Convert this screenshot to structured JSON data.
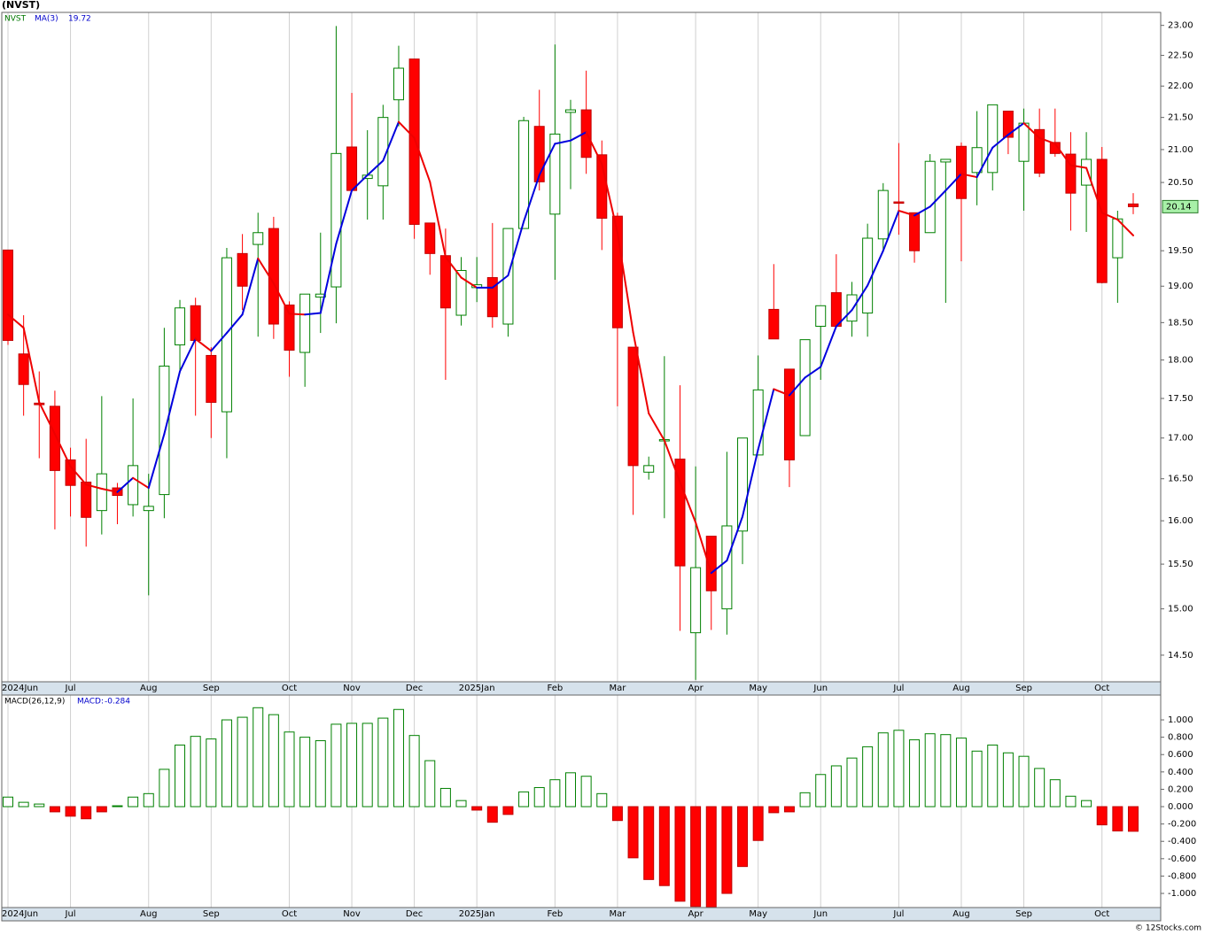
{
  "chart_data": [
    {
      "type": "candlestick",
      "title": "(NVST)",
      "symbol": "NVST",
      "categories": [
        "2024Jun",
        null,
        null,
        null,
        "Jul",
        null,
        null,
        null,
        null,
        "Aug",
        null,
        null,
        null,
        "Sep",
        null,
        null,
        null,
        null,
        "Oct",
        null,
        null,
        null,
        "Nov",
        null,
        null,
        null,
        "Dec",
        null,
        null,
        null,
        "2025Jan",
        null,
        null,
        null,
        null,
        "Feb",
        null,
        null,
        null,
        "Mar",
        null,
        null,
        null,
        null,
        "Apr",
        null,
        null,
        null,
        "May",
        null,
        null,
        null,
        "Jun",
        null,
        null,
        null,
        null,
        "Jul",
        null,
        null,
        null,
        "Aug",
        null,
        null,
        null,
        "Sep",
        null,
        null,
        null,
        null,
        "Oct",
        null,
        null
      ],
      "open": [
        19.51,
        18.08,
        17.44,
        17.4,
        16.73,
        16.46,
        16.12,
        16.39,
        16.19,
        16.12,
        16.31,
        18.2,
        18.73,
        18.06,
        17.33,
        19.46,
        19.59,
        19.82,
        18.74,
        18.1,
        18.85,
        18.99,
        21.04,
        20.56,
        20.45,
        21.78,
        22.44,
        19.9,
        19.43,
        18.6,
        18.98,
        19.12,
        18.48,
        19.82,
        21.36,
        20.03,
        21.58,
        21.62,
        20.92,
        20.0,
        18.17,
        16.58,
        16.97,
        16.74,
        14.74,
        15.82,
        15.0,
        15.88,
        16.79,
        18.68,
        17.88,
        17.03,
        18.45,
        18.91,
        18.52,
        18.63,
        19.67,
        20.21,
        20.05,
        19.76,
        20.81,
        21.05,
        20.65,
        20.65,
        21.6,
        20.82,
        21.31,
        21.11,
        20.93,
        20.46,
        20.85,
        19.4,
        20.18
      ],
      "high": [
        19.51,
        18.6,
        17.85,
        17.6,
        16.88,
        16.99,
        17.53,
        16.45,
        17.5,
        16.56,
        18.43,
        18.81,
        18.84,
        18.17,
        19.54,
        19.74,
        20.05,
        19.99,
        18.79,
        18.89,
        19.76,
        22.99,
        21.89,
        21.3,
        21.7,
        22.66,
        22.44,
        19.9,
        19.82,
        19.41,
        19.41,
        19.9,
        19.82,
        21.51,
        21.94,
        22.68,
        21.78,
        22.25,
        21.14,
        20.05,
        18.17,
        16.77,
        18.05,
        17.67,
        16.65,
        15.82,
        16.83,
        17.0,
        18.06,
        19.31,
        17.88,
        18.27,
        18.73,
        19.45,
        19.06,
        19.89,
        20.49,
        21.1,
        20.05,
        20.93,
        20.85,
        21.11,
        21.6,
        21.7,
        21.6,
        21.64,
        21.64,
        21.64,
        21.27,
        21.27,
        21.04,
        20.08,
        20.34
      ],
      "low": [
        18.2,
        17.28,
        16.75,
        15.9,
        16.05,
        15.7,
        15.84,
        15.96,
        16.05,
        15.15,
        16.03,
        17.85,
        17.28,
        17.0,
        16.75,
        18.67,
        18.31,
        18.28,
        17.78,
        17.65,
        18.36,
        18.49,
        20.36,
        19.95,
        19.95,
        21.36,
        19.67,
        19.16,
        17.74,
        18.46,
        18.78,
        18.43,
        18.31,
        19.82,
        20.38,
        19.09,
        20.4,
        20.63,
        19.51,
        17.4,
        16.07,
        16.49,
        16.03,
        14.76,
        14.24,
        14.77,
        14.72,
        15.5,
        16.79,
        18.28,
        16.4,
        17.03,
        17.74,
        18.43,
        18.31,
        18.31,
        19.51,
        19.73,
        19.33,
        19.76,
        18.77,
        19.35,
        20.16,
        20.38,
        20.93,
        20.08,
        20.58,
        20.89,
        19.79,
        19.77,
        19.04,
        18.77,
        20.03
      ],
      "close": [
        18.26,
        17.68,
        17.42,
        16.6,
        16.42,
        16.04,
        16.56,
        16.3,
        16.66,
        16.17,
        17.92,
        18.7,
        18.26,
        17.45,
        19.4,
        19.0,
        19.76,
        18.48,
        18.13,
        18.89,
        18.89,
        20.94,
        20.38,
        20.61,
        21.5,
        22.29,
        19.88,
        19.46,
        18.7,
        19.22,
        19.02,
        18.58,
        19.82,
        21.45,
        20.51,
        21.24,
        21.62,
        20.88,
        19.97,
        18.43,
        16.66,
        16.66,
        16.98,
        15.48,
        15.46,
        15.2,
        15.94,
        17.0,
        17.61,
        18.28,
        16.73,
        18.27,
        18.73,
        18.45,
        18.88,
        19.68,
        20.38,
        20.2,
        19.5,
        20.82,
        20.85,
        20.26,
        21.03,
        21.7,
        21.19,
        21.41,
        20.64,
        20.94,
        20.34,
        20.85,
        19.05,
        19.96,
        20.14
      ],
      "up_color": "#008000",
      "down_color": "#ff0000",
      "ma": {
        "name": "MA(3)",
        "rise_color": "#0000dd",
        "fall_color": "#ee0000",
        "values": [
          18.61,
          18.43,
          17.45,
          17.05,
          16.65,
          16.43,
          16.38,
          16.34,
          16.51,
          16.39,
          17.05,
          17.85,
          18.28,
          18.12,
          18.36,
          18.61,
          19.39,
          19.04,
          18.62,
          18.61,
          18.63,
          19.6,
          20.38,
          20.61,
          20.83,
          21.43,
          21.18,
          20.51,
          19.41,
          19.12,
          18.98,
          18.98,
          19.15,
          19.92,
          20.61,
          21.09,
          21.14,
          21.27,
          20.78,
          19.76,
          18.37,
          17.31,
          16.97,
          16.46,
          15.98,
          15.4,
          15.54,
          16.05,
          16.86,
          17.62,
          17.54,
          17.77,
          17.91,
          18.45,
          18.67,
          19.01,
          19.5,
          20.08,
          20.01,
          20.14,
          20.38,
          20.63,
          20.58,
          21.03,
          21.23,
          21.41,
          21.18,
          21.09,
          20.76,
          20.72,
          20.05,
          19.95,
          19.72
        ]
      },
      "log_scale": true,
      "x_grid": true,
      "ylim": [
        14.22,
        23.22
      ],
      "yticks": [
        {
          "value": 23,
          "label": "23.00"
        },
        {
          "value": 22.5,
          "label": "22.50"
        },
        {
          "value": 22,
          "label": "22.00"
        },
        {
          "value": 21.5,
          "label": "21.50"
        },
        {
          "value": 21,
          "label": "21.00"
        },
        {
          "value": 20.5,
          "label": "20.50"
        },
        {
          "value": 19.5,
          "label": "19.50"
        },
        {
          "value": 19,
          "label": "19.00"
        },
        {
          "value": 18.5,
          "label": "18.50"
        },
        {
          "value": 18,
          "label": "18.00"
        },
        {
          "value": 17.5,
          "label": "17.50"
        },
        {
          "value": 17,
          "label": "17.00"
        },
        {
          "value": 16.5,
          "label": "16.50"
        },
        {
          "value": 16,
          "label": "16.00"
        },
        {
          "value": 15.5,
          "label": "15.50"
        },
        {
          "value": 15,
          "label": "15.00"
        },
        {
          "value": 14.5,
          "label": "14.50"
        }
      ]
    },
    {
      "type": "bar",
      "name": "MACD(26,12,9)",
      "label": "MACD:",
      "categories": [
        "2024Jun",
        null,
        null,
        null,
        "Jul",
        null,
        null,
        null,
        null,
        "Aug",
        null,
        null,
        null,
        "Sep",
        null,
        null,
        null,
        null,
        "Oct",
        null,
        null,
        null,
        "Nov",
        null,
        null,
        null,
        "Dec",
        null,
        null,
        null,
        "2025Jan",
        null,
        null,
        null,
        null,
        "Feb",
        null,
        null,
        null,
        "Mar",
        null,
        null,
        null,
        null,
        "Apr",
        null,
        null,
        null,
        "May",
        null,
        null,
        null,
        "Jun",
        null,
        null,
        null,
        null,
        "Jul",
        null,
        null,
        null,
        "Aug",
        null,
        null,
        null,
        "Sep",
        null,
        null,
        null,
        null,
        "Oct",
        null,
        null
      ],
      "values": [
        0.11,
        0.05,
        0.03,
        -0.06,
        -0.11,
        -0.14,
        -0.06,
        0.01,
        0.11,
        0.15,
        0.43,
        0.71,
        0.81,
        0.78,
        1.0,
        1.03,
        1.14,
        1.06,
        0.86,
        0.8,
        0.76,
        0.95,
        0.96,
        0.96,
        1.02,
        1.12,
        0.82,
        0.53,
        0.21,
        0.07,
        -0.04,
        -0.18,
        -0.09,
        0.17,
        0.22,
        0.31,
        0.39,
        0.35,
        0.15,
        -0.16,
        -0.59,
        -0.84,
        -0.91,
        -1.09,
        -1.15,
        -1.16,
        -1.0,
        -0.69,
        -0.39,
        -0.07,
        -0.06,
        0.16,
        0.37,
        0.47,
        0.56,
        0.69,
        0.85,
        0.88,
        0.77,
        0.84,
        0.83,
        0.79,
        0.64,
        0.71,
        0.62,
        0.58,
        0.44,
        0.31,
        0.12,
        0.07,
        -0.21,
        -0.28,
        -0.284
      ],
      "pos_color": "#008000",
      "neg_color": "#ff0000",
      "ylim": [
        -1.163,
        1.286
      ],
      "yticks": [
        {
          "value": 1,
          "label": "1.000"
        },
        {
          "value": 0.8,
          "label": "0.800"
        },
        {
          "value": 0.6,
          "label": "0.600"
        },
        {
          "value": 0.4,
          "label": "0.400"
        },
        {
          "value": 0.2,
          "label": "0.200"
        },
        {
          "value": 0,
          "label": "0.000"
        },
        {
          "value": -0.2,
          "label": "-0.200"
        },
        {
          "value": -0.4,
          "label": "-0.400"
        },
        {
          "value": -0.6,
          "label": "-0.600"
        },
        {
          "value": -0.8,
          "label": "-0.800"
        },
        {
          "value": -1,
          "label": "-1.000"
        }
      ]
    }
  ],
  "footer": "© 12Stocks.com"
}
